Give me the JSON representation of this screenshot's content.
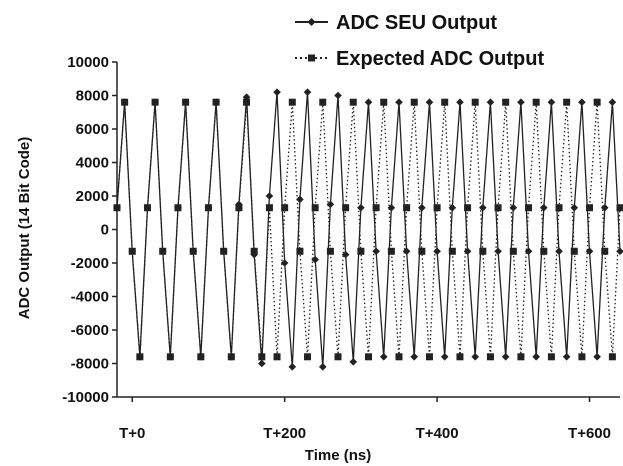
{
  "chart_data": {
    "type": "line",
    "title": "",
    "xlabel": "Time (ns)",
    "ylabel": "ADC Output (14 Bit Code)",
    "xlim": [
      -20,
      640
    ],
    "ylim": [
      -10000,
      10000
    ],
    "x_ticks": [
      {
        "value": 0,
        "label": "T+0"
      },
      {
        "value": 200,
        "label": "T+200"
      },
      {
        "value": 400,
        "label": "T+400"
      },
      {
        "value": 600,
        "label": "T+600"
      }
    ],
    "y_ticks": [
      10000,
      8000,
      6000,
      4000,
      2000,
      0,
      -2000,
      -4000,
      -6000,
      -8000,
      -10000
    ],
    "grid": false,
    "legend_position": "top-right",
    "series": [
      {
        "name": "ADC SEU Output",
        "line_style": "solid",
        "marker": "diamond",
        "color": "#222222",
        "x": [
          -20,
          -10,
          0,
          10,
          20,
          30,
          40,
          50,
          60,
          70,
          80,
          90,
          100,
          110,
          120,
          130,
          140,
          150,
          160,
          170,
          180,
          190,
          200,
          210,
          220,
          230,
          240,
          250,
          260,
          270,
          280,
          290,
          300,
          310,
          320,
          330,
          340,
          350,
          360,
          370,
          380,
          390,
          400,
          410,
          420,
          430,
          440,
          450,
          460,
          470,
          480,
          490,
          500,
          510,
          520,
          530,
          540,
          550,
          560,
          570,
          580,
          590,
          600,
          610,
          620,
          630,
          640
        ],
        "y": [
          1300,
          7600,
          -1300,
          -7600,
          1300,
          7600,
          -1300,
          -7600,
          1300,
          7600,
          -1300,
          -7600,
          1300,
          7600,
          -1300,
          -7600,
          1500,
          7900,
          -1500,
          -8000,
          2000,
          8200,
          -2000,
          -8200,
          1800,
          8200,
          -1800,
          -8200,
          1500,
          8000,
          -1500,
          -7900,
          1300,
          7600,
          -1300,
          -7600,
          1300,
          7600,
          -1300,
          -7600,
          1300,
          7600,
          -1300,
          -7600,
          1300,
          7600,
          -1300,
          -7600,
          1300,
          7600,
          -1300,
          -7600,
          1300,
          7600,
          -1300,
          -7600,
          1300,
          7600,
          -1300,
          -7600,
          1300,
          7600,
          -1300,
          -7600,
          1300,
          7600,
          -1300
        ]
      },
      {
        "name": "Expected ADC Output",
        "line_style": "dotted",
        "marker": "square",
        "color": "#222222",
        "x": [
          -20,
          -10,
          0,
          10,
          20,
          30,
          40,
          50,
          60,
          70,
          80,
          90,
          100,
          110,
          120,
          130,
          140,
          150,
          160,
          170,
          180,
          190,
          200,
          210,
          220,
          230,
          240,
          250,
          260,
          270,
          280,
          290,
          300,
          310,
          320,
          330,
          340,
          350,
          360,
          370,
          380,
          390,
          400,
          410,
          420,
          430,
          440,
          450,
          460,
          470,
          480,
          490,
          500,
          510,
          520,
          530,
          540,
          550,
          560,
          570,
          580,
          590,
          600,
          610,
          620,
          630,
          640
        ],
        "y": [
          1300,
          7600,
          -1300,
          -7600,
          1300,
          7600,
          -1300,
          -7600,
          1300,
          7600,
          -1300,
          -7600,
          1300,
          7600,
          -1300,
          -7600,
          1300,
          7600,
          -1300,
          -7600,
          1300,
          -7600,
          1300,
          7600,
          -1300,
          -7600,
          1300,
          7600,
          -1300,
          -7600,
          1300,
          7600,
          -1300,
          -7600,
          1300,
          7600,
          -1300,
          -7600,
          1300,
          7600,
          -1300,
          -7600,
          1300,
          7600,
          -1300,
          -7600,
          1300,
          7600,
          -1300,
          -7600,
          1300,
          7600,
          -1300,
          -7600,
          1300,
          7600,
          -1300,
          -7600,
          1300,
          7600,
          -1300,
          -7600,
          1300,
          7600,
          -1300,
          -7600,
          1300
        ]
      }
    ]
  }
}
